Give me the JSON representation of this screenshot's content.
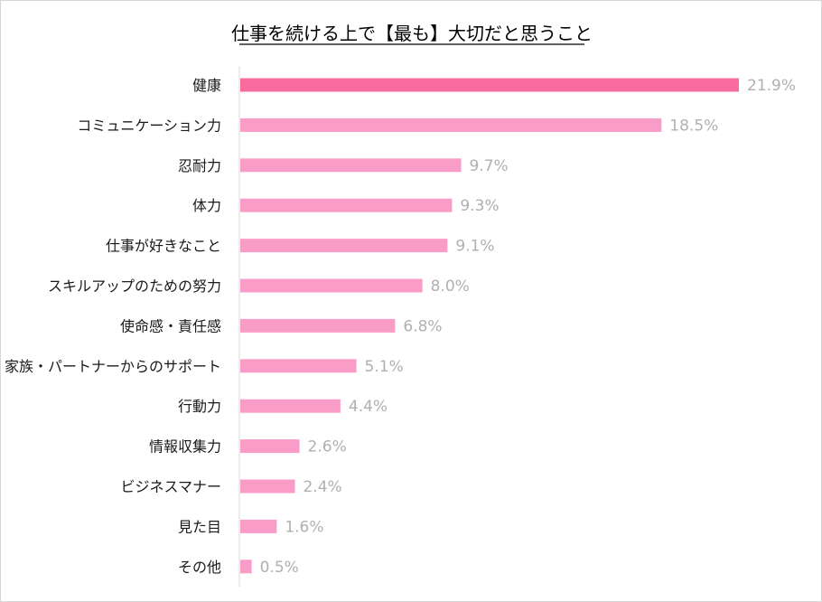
{
  "chart_data": {
    "type": "bar",
    "orientation": "horizontal",
    "title": "仕事を続ける上で【最も】大切だと思うこと",
    "categories": [
      "健康",
      "コミュニケーション力",
      "忍耐力",
      "体力",
      "仕事が好きなこと",
      "スキルアップのための努力",
      "使命感・責任感",
      "家族・パートナーからのサポート",
      "行動力",
      "情報収集力",
      "ビジネスマナー",
      "見た目",
      "その他"
    ],
    "values": [
      21.9,
      18.5,
      9.7,
      9.3,
      9.1,
      8.0,
      6.8,
      5.1,
      4.4,
      2.6,
      2.4,
      1.6,
      0.5
    ],
    "value_labels": [
      "21.9%",
      "18.5%",
      "9.7%",
      "9.3%",
      "9.1%",
      "8.0%",
      "6.8%",
      "5.1%",
      "4.4%",
      "2.6%",
      "2.4%",
      "1.6%",
      "0.5%"
    ],
    "unit": "%",
    "xlim": [
      0,
      21.9
    ],
    "grid": false,
    "legend": "none",
    "colors": {
      "highlight_bar": "#f76b9e",
      "bar": "#f99cc7",
      "value_label": "#b0b0b0",
      "axis": "#d9d9d9"
    }
  }
}
